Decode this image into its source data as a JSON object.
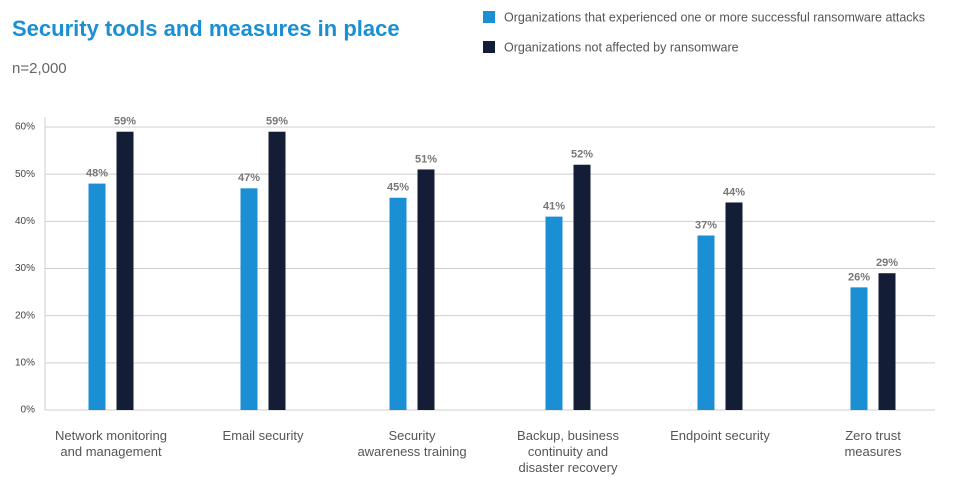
{
  "chart_data": {
    "type": "bar",
    "title": "Security tools and measures in place",
    "subtitle": "n=2,000",
    "categories": [
      "Network monitoring\nand management",
      "Email security",
      "Security\nawareness training",
      "Backup, business\ncontinuity and\ndisaster recovery",
      "Endpoint security",
      "Zero trust\nmeasures"
    ],
    "series": [
      {
        "name": "Organizations that experienced one or more successful ransomware attacks",
        "color": "#1a8fd4",
        "values": [
          48,
          47,
          45,
          41,
          37,
          26
        ],
        "value_labels": [
          "48%",
          "47%",
          "45%",
          "41%",
          "37%",
          "26%"
        ]
      },
      {
        "name": "Organizations not affected by ransomware",
        "color": "#131d35",
        "values": [
          59,
          59,
          51,
          52,
          44,
          29
        ],
        "value_labels": [
          "59%",
          "59%",
          "51%",
          "52%",
          "44%",
          "29%"
        ]
      }
    ],
    "ylim": [
      0,
      60
    ],
    "yticks": [
      {
        "value": 0,
        "label": "0%"
      },
      {
        "value": 10,
        "label": "10%"
      },
      {
        "value": 20,
        "label": "20%"
      },
      {
        "value": 30,
        "label": "30%"
      },
      {
        "value": 40,
        "label": "40%"
      },
      {
        "value": 50,
        "label": "50%"
      },
      {
        "value": 60,
        "label": "60%"
      }
    ],
    "grid": true,
    "legend": "top-right"
  }
}
